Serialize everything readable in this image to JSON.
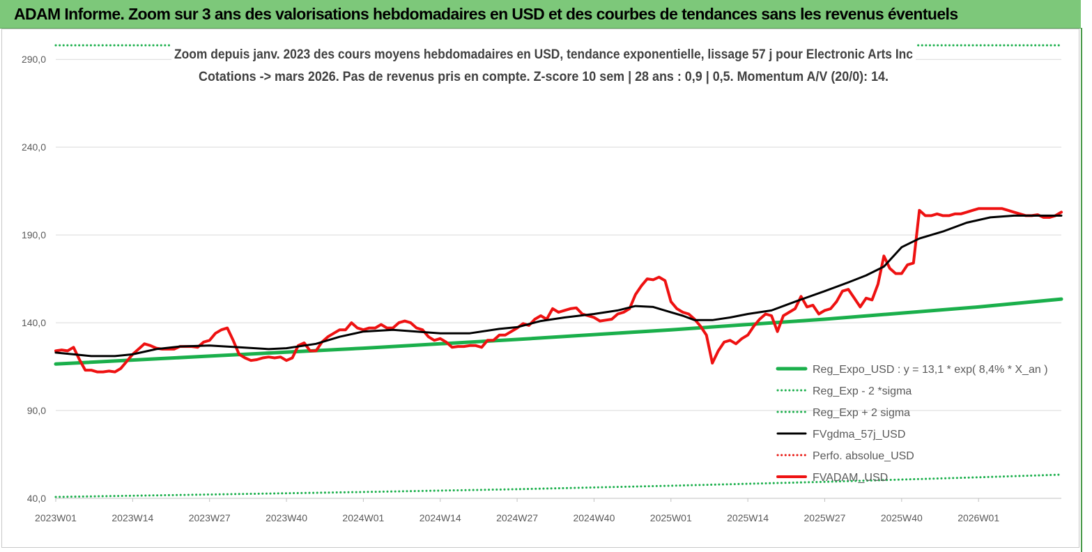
{
  "banner": {
    "title": "ADAM Informe. Zoom sur 3 ans des valorisations hebdomadaires en USD et des courbes de tendances sans les revenus éventuels"
  },
  "chart_data": {
    "type": "line",
    "title": "Zoom depuis janv. 2023 des cours moyens hebdomadaires en USD, tendance exponentielle, lissage 57 j pour Electronic Arts Inc",
    "subtitle": "Cotations -> mars 2026. Pas de revenus pris en  compte. Z-score 10 sem  | 28 ans : 0,9  | 0,5. Momentum A/V (20/0): 14.",
    "xlabel": "",
    "ylabel": "",
    "ylim": [
      40,
      300
    ],
    "y_ticks": [
      "40,0",
      "90,0",
      "140,0",
      "190,0",
      "240,0",
      "290,0"
    ],
    "y_tick_values": [
      40,
      90,
      140,
      190,
      240,
      290
    ],
    "x_ticks": [
      "2023W01",
      "2023W14",
      "2023W27",
      "2023W40",
      "2024W01",
      "2024W14",
      "2024W27",
      "2024W40",
      "2025W01",
      "2025W14",
      "2025W27",
      "2025W40",
      "2026W01"
    ],
    "x_tick_weeks": [
      0,
      13,
      26,
      39,
      52,
      65,
      78,
      91,
      104,
      117,
      130,
      143,
      156
    ],
    "x_range_weeks": [
      0,
      170
    ],
    "grid": "horizontal",
    "legend_position": "bottom-right",
    "series": [
      {
        "name": "Reg_Expo_USD : y = 13,1 * exp( 8,4% *  X_an )",
        "color": "#1aaf4b",
        "style": "solid",
        "width": 5,
        "points": [
          [
            0,
            116.5
          ],
          [
            26,
            121
          ],
          [
            52,
            125.5
          ],
          [
            78,
            130.5
          ],
          [
            104,
            136
          ],
          [
            130,
            142
          ],
          [
            156,
            149
          ],
          [
            170,
            153.5
          ]
        ]
      },
      {
        "name": "Reg_Exp - 2 *sigma",
        "color": "#1aaf4b",
        "style": "dotted",
        "width": 3,
        "points": [
          [
            0,
            40.8
          ],
          [
            26,
            42.2
          ],
          [
            52,
            43.6
          ],
          [
            78,
            45.2
          ],
          [
            104,
            47.2
          ],
          [
            130,
            49.4
          ],
          [
            156,
            52.0
          ],
          [
            170,
            53.5
          ]
        ]
      },
      {
        "name": "Reg_Exp + 2 sigma",
        "color": "#1aaf4b",
        "style": "dotted",
        "width": 3,
        "points": [
          [
            0,
            298
          ],
          [
            170,
            298
          ]
        ]
      },
      {
        "name": "FVgdma_57j_USD",
        "color": "#000000",
        "style": "solid",
        "width": 3,
        "points": [
          [
            0,
            123
          ],
          [
            3,
            122
          ],
          [
            6,
            121
          ],
          [
            10,
            121
          ],
          [
            13,
            122
          ],
          [
            17,
            125
          ],
          [
            21,
            126.5
          ],
          [
            26,
            127
          ],
          [
            31,
            126
          ],
          [
            36,
            125
          ],
          [
            39,
            125.5
          ],
          [
            44,
            128
          ],
          [
            48,
            132
          ],
          [
            52,
            135
          ],
          [
            57,
            136
          ],
          [
            61,
            135
          ],
          [
            65,
            134
          ],
          [
            70,
            134
          ],
          [
            75,
            136.5
          ],
          [
            78,
            137.5
          ],
          [
            82,
            141
          ],
          [
            86,
            143
          ],
          [
            91,
            145
          ],
          [
            95,
            147
          ],
          [
            98,
            149.5
          ],
          [
            101,
            149
          ],
          [
            104,
            146
          ],
          [
            106,
            144
          ],
          [
            108,
            141.5
          ],
          [
            111,
            141.5
          ],
          [
            114,
            143
          ],
          [
            117,
            145
          ],
          [
            121,
            147
          ],
          [
            125,
            152
          ],
          [
            130,
            158
          ],
          [
            134,
            163
          ],
          [
            137,
            167
          ],
          [
            140,
            172
          ],
          [
            143,
            183
          ],
          [
            146,
            188
          ],
          [
            150,
            192
          ],
          [
            154,
            197
          ],
          [
            158,
            200
          ],
          [
            162,
            201
          ],
          [
            166,
            201
          ],
          [
            170,
            201
          ]
        ]
      },
      {
        "name": "Perfo. absolue_USD",
        "color": "#e8150f",
        "style": "dotted",
        "width": 3,
        "points": []
      },
      {
        "name": "FVADAM_USD",
        "color": "#ee1111",
        "style": "solid",
        "width": 4,
        "points": [
          [
            0,
            124
          ],
          [
            1,
            124.5
          ],
          [
            2,
            124
          ],
          [
            3,
            126
          ],
          [
            4,
            119
          ],
          [
            5,
            113
          ],
          [
            6,
            113
          ],
          [
            7,
            112
          ],
          [
            8,
            112
          ],
          [
            9,
            112.5
          ],
          [
            10,
            112
          ],
          [
            11,
            114
          ],
          [
            12,
            118
          ],
          [
            13,
            122
          ],
          [
            14,
            125
          ],
          [
            15,
            128
          ],
          [
            16,
            127
          ],
          [
            17,
            125.5
          ],
          [
            18,
            125
          ],
          [
            19,
            125
          ],
          [
            20,
            125
          ],
          [
            21,
            126.5
          ],
          [
            22,
            126.5
          ],
          [
            23,
            126.5
          ],
          [
            24,
            126
          ],
          [
            25,
            129
          ],
          [
            26,
            130
          ],
          [
            27,
            134
          ],
          [
            28,
            136
          ],
          [
            29,
            137
          ],
          [
            30,
            130
          ],
          [
            31,
            122
          ],
          [
            32,
            120
          ],
          [
            33,
            118.5
          ],
          [
            34,
            119
          ],
          [
            35,
            120
          ],
          [
            36,
            120.5
          ],
          [
            37,
            120
          ],
          [
            38,
            120.5
          ],
          [
            39,
            118.5
          ],
          [
            40,
            120
          ],
          [
            41,
            127
          ],
          [
            42,
            128.5
          ],
          [
            43,
            124
          ],
          [
            44,
            124
          ],
          [
            45,
            129
          ],
          [
            46,
            132
          ],
          [
            47,
            134
          ],
          [
            48,
            136
          ],
          [
            49,
            136
          ],
          [
            50,
            140
          ],
          [
            51,
            137
          ],
          [
            52,
            136
          ],
          [
            53,
            137
          ],
          [
            54,
            137
          ],
          [
            55,
            139
          ],
          [
            56,
            137
          ],
          [
            57,
            137
          ],
          [
            58,
            140
          ],
          [
            59,
            141
          ],
          [
            60,
            140
          ],
          [
            61,
            137
          ],
          [
            62,
            136
          ],
          [
            63,
            132
          ],
          [
            64,
            130
          ],
          [
            65,
            131
          ],
          [
            66,
            129
          ],
          [
            67,
            126
          ],
          [
            68,
            126.5
          ],
          [
            69,
            126.5
          ],
          [
            70,
            127
          ],
          [
            71,
            127
          ],
          [
            72,
            126
          ],
          [
            73,
            130
          ],
          [
            74,
            130
          ],
          [
            75,
            133
          ],
          [
            76,
            133
          ],
          [
            77,
            135
          ],
          [
            78,
            137
          ],
          [
            79,
            139.5
          ],
          [
            80,
            138.5
          ],
          [
            81,
            142
          ],
          [
            82,
            144
          ],
          [
            83,
            142
          ],
          [
            84,
            148
          ],
          [
            85,
            146
          ],
          [
            86,
            147
          ],
          [
            87,
            148
          ],
          [
            88,
            148.5
          ],
          [
            89,
            145
          ],
          [
            90,
            144
          ],
          [
            91,
            143
          ],
          [
            92,
            141
          ],
          [
            93,
            141.5
          ],
          [
            94,
            142
          ],
          [
            95,
            145
          ],
          [
            96,
            146
          ],
          [
            97,
            148
          ],
          [
            98,
            156
          ],
          [
            99,
            161
          ],
          [
            100,
            165
          ],
          [
            101,
            164.5
          ],
          [
            102,
            166
          ],
          [
            103,
            164
          ],
          [
            104,
            152
          ],
          [
            105,
            148
          ],
          [
            106,
            146
          ],
          [
            107,
            145
          ],
          [
            108,
            142
          ],
          [
            109,
            138
          ],
          [
            110,
            133
          ],
          [
            111,
            117
          ],
          [
            112,
            124
          ],
          [
            113,
            129
          ],
          [
            114,
            130
          ],
          [
            115,
            128
          ],
          [
            116,
            131
          ],
          [
            117,
            133
          ],
          [
            118,
            138
          ],
          [
            119,
            142
          ],
          [
            120,
            145
          ],
          [
            121,
            144
          ],
          [
            122,
            135
          ],
          [
            123,
            144
          ],
          [
            124,
            146
          ],
          [
            125,
            148
          ],
          [
            126,
            155
          ],
          [
            127,
            149
          ],
          [
            128,
            150
          ],
          [
            129,
            145
          ],
          [
            130,
            147
          ],
          [
            131,
            148
          ],
          [
            132,
            152
          ],
          [
            133,
            158
          ],
          [
            134,
            159
          ],
          [
            135,
            154
          ],
          [
            136,
            149
          ],
          [
            137,
            154
          ],
          [
            138,
            153
          ],
          [
            139,
            162
          ],
          [
            140,
            178
          ],
          [
            141,
            171
          ],
          [
            142,
            168
          ],
          [
            143,
            168
          ],
          [
            144,
            173
          ],
          [
            145,
            174
          ],
          [
            146,
            204
          ],
          [
            147,
            201
          ],
          [
            148,
            201
          ],
          [
            149,
            202
          ],
          [
            150,
            201
          ],
          [
            151,
            201
          ],
          [
            152,
            202
          ],
          [
            153,
            202
          ],
          [
            154,
            203
          ],
          [
            155,
            204
          ],
          [
            156,
            205
          ],
          [
            157,
            205
          ],
          [
            158,
            205
          ],
          [
            159,
            205
          ],
          [
            160,
            205
          ],
          [
            161,
            204
          ],
          [
            162,
            203
          ],
          [
            163,
            202
          ],
          [
            164,
            201
          ],
          [
            165,
            201
          ],
          [
            166,
            201.5
          ],
          [
            167,
            200
          ],
          [
            168,
            200
          ],
          [
            169,
            201
          ],
          [
            170,
            203
          ]
        ]
      }
    ]
  }
}
